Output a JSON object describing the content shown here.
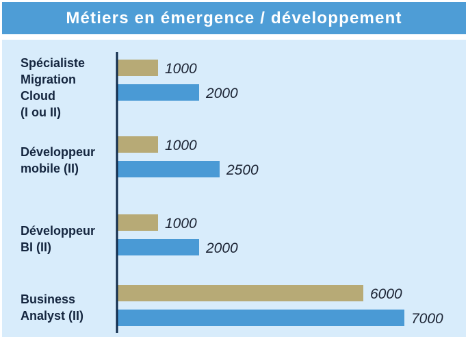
{
  "colors": {
    "title_bg": "#4e9dd6",
    "panel_bg": "#d8ecfb",
    "axis": "#0f2a4a",
    "series_1": "#b7aa76",
    "series_2": "#4a9ad5"
  },
  "title": "Métiers en émergence / développement",
  "chart_data": {
    "type": "bar",
    "orientation": "horizontal",
    "title": "Métiers en émergence / développement",
    "categories": [
      "Spécialiste\nMigration\nCloud\n(I ou II)",
      "Développeur\nmobile (II)",
      "Développeur\nBI (II)",
      "Business\nAnalyst (II)"
    ],
    "series": [
      {
        "color": "#b7aa76",
        "values": [
          1000,
          1000,
          1000,
          6000
        ]
      },
      {
        "color": "#4a9ad5",
        "values": [
          2000,
          2500,
          2000,
          7000
        ]
      }
    ],
    "value_labels": [
      [
        "1000",
        "1000",
        "1000",
        "6000"
      ],
      [
        "2000",
        "2500",
        "2000",
        "7000"
      ]
    ],
    "xlim": [
      0,
      7000
    ],
    "grid": false,
    "legend": "none"
  }
}
